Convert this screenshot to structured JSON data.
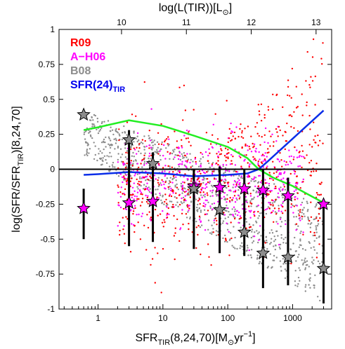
{
  "chart_data": {
    "type": "scatter",
    "title": "",
    "xlabel": "SFR_TIR(8,24,70)[M_⊙yr^-1]",
    "ylabel": "log(SFR/SFR_TIR)[8,24,70]",
    "top_xlabel": "log(L(TIR))[L_⊙]",
    "x_scale": "log",
    "xlim": [
      0.25,
      4000
    ],
    "ylim": [
      -1,
      1
    ],
    "x_ticks": [
      1,
      10,
      100,
      1000
    ],
    "x_tick_labels": [
      "1",
      "10",
      "100",
      "1000"
    ],
    "y_ticks": [
      -1,
      -0.75,
      -0.5,
      -0.25,
      0,
      0.25,
      0.5,
      0.75,
      1
    ],
    "y_tick_labels": [
      "-1",
      "-0.75",
      "-0.5",
      "-0.25",
      "0",
      "0.25",
      "0.5",
      "0.75",
      "1"
    ],
    "top_ticks": [
      10,
      11,
      12,
      13
    ],
    "top_tick_labels": [
      "10",
      "11",
      "12",
      "13"
    ],
    "top_tick_positions_sfr": [
      2.3,
      23,
      230,
      2300
    ],
    "legend_position": "top-left",
    "legend": [
      {
        "label": "R09",
        "color": "#ff0000"
      },
      {
        "label": "A−H06",
        "color": "#ff00ff"
      },
      {
        "label": "B08",
        "color": "#8c8c8c"
      },
      {
        "label": "SFR(24)",
        "sub": "TIR",
        "color": "#0000ee"
      }
    ],
    "series": [
      {
        "name": "SFR(24)_TIR",
        "kind": "line",
        "color": "#0a2ee8",
        "x": [
          0.6,
          1,
          3,
          10,
          30,
          100,
          200,
          300,
          400,
          3000
        ],
        "y": [
          -0.04,
          -0.035,
          -0.02,
          -0.03,
          -0.05,
          -0.04,
          -0.03,
          0.0,
          0.05,
          0.42
        ]
      },
      {
        "kind": "line",
        "color": "#22ee22",
        "x": [
          0.6,
          1,
          3,
          10,
          30,
          100,
          200,
          300,
          500,
          1000,
          3000
        ],
        "y": [
          0.28,
          0.3,
          0.35,
          0.31,
          0.24,
          0.16,
          0.08,
          0.0,
          -0.06,
          -0.12,
          -0.24
        ]
      },
      {
        "kind": "line",
        "color": "#000000",
        "x": [
          0.25,
          4000
        ],
        "y": [
          0,
          0
        ]
      }
    ],
    "binned_points": [
      {
        "x": 0.6,
        "y_magenta": -0.28,
        "y_gray": 0.39,
        "err_low": -0.5,
        "err_high": -0.14
      },
      {
        "x": 3,
        "y_magenta": -0.24,
        "y_gray": 0.21,
        "err_low": -0.55,
        "err_high": 0.28
      },
      {
        "x": 7,
        "y_magenta": -0.23,
        "y_gray": 0.04,
        "err_low": -0.52,
        "err_high": 0.12
      },
      {
        "x": 30,
        "y_magenta": -0.12,
        "y_gray": -0.14,
        "err_low": -0.57,
        "err_high": 0.0
      },
      {
        "x": 75,
        "y_magenta": -0.13,
        "y_gray": -0.29,
        "err_low": -0.6,
        "err_high": 0.02
      },
      {
        "x": 180,
        "y_magenta": -0.14,
        "y_gray": -0.45,
        "err_low": -0.62,
        "err_high": 0.0
      },
      {
        "x": 350,
        "y_magenta": -0.15,
        "y_gray": -0.6,
        "err_low": -0.85,
        "err_high": 0.0
      },
      {
        "x": 850,
        "y_magenta": -0.19,
        "y_gray": -0.63,
        "err_low": -0.83,
        "err_high": -0.06
      },
      {
        "x": 3000,
        "y_magenta": -0.25,
        "y_gray": -0.71,
        "err_low": -0.96,
        "err_high": -0.22
      }
    ],
    "clouds": [
      {
        "name": "B08",
        "color": "#8c8c8c",
        "count": 900,
        "x_range": [
          0.6,
          3000
        ],
        "note_shape": "wedge",
        "y_top_start": 0.42,
        "y_top_end": -0.24,
        "y_bot_start": 0.1,
        "y_bot_end": -0.96
      },
      {
        "name": "A−H06",
        "color": "#ff00ff",
        "count": 520,
        "x_range": [
          2,
          1500
        ],
        "y_center": -0.1,
        "y_spread": 0.28
      },
      {
        "name": "R09",
        "color": "#ff0000",
        "count": 600,
        "x_range": [
          2,
          3000
        ],
        "y_center": -0.15,
        "y_spread": 0.4
      }
    ]
  }
}
